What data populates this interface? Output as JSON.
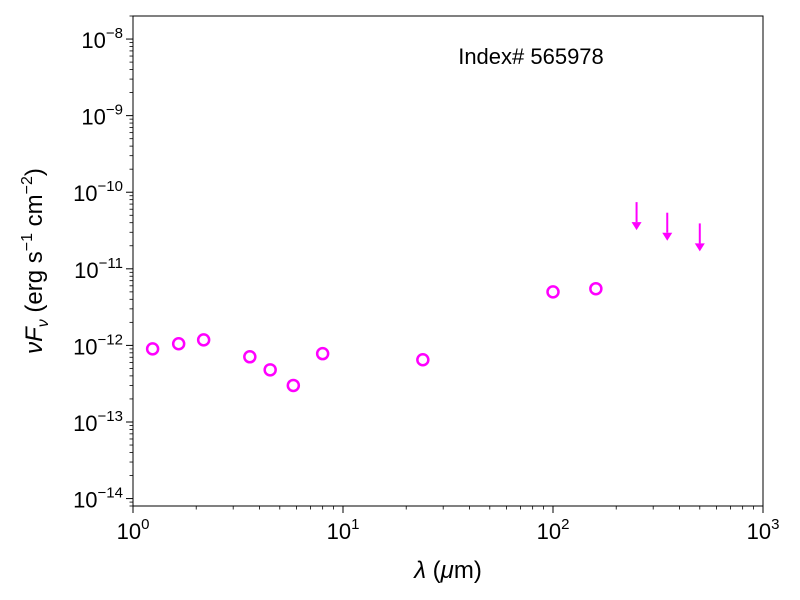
{
  "chart_data": {
    "type": "scatter",
    "annotation": "Index# 565978",
    "xlabel": "λ (μm)",
    "ylabel": "νFν (erg s⁻¹ cm⁻²)",
    "xscale": "log",
    "yscale": "log",
    "xlim": [
      1,
      1000
    ],
    "ylim": [
      8e-15,
      2e-08
    ],
    "grid": false,
    "x_ticks": [
      {
        "value": 1,
        "base": "10",
        "exp": "0"
      },
      {
        "value": 10,
        "base": "10",
        "exp": "1"
      },
      {
        "value": 100,
        "base": "10",
        "exp": "2"
      },
      {
        "value": 1000,
        "base": "10",
        "exp": "3"
      }
    ],
    "y_ticks": [
      {
        "value": 1e-14,
        "base": "10",
        "exp": "−14"
      },
      {
        "value": 1e-13,
        "base": "10",
        "exp": "−13"
      },
      {
        "value": 1e-12,
        "base": "10",
        "exp": "−12"
      },
      {
        "value": 1e-11,
        "base": "10",
        "exp": "−11"
      },
      {
        "value": 1e-10,
        "base": "10",
        "exp": "−10"
      },
      {
        "value": 1e-09,
        "base": "10",
        "exp": "−9"
      },
      {
        "value": 1e-08,
        "base": "10",
        "exp": "−8"
      }
    ],
    "series": [
      {
        "marker": "open-circle",
        "color": "#ff00ff",
        "points": [
          {
            "x": 1.24,
            "y": 9e-13
          },
          {
            "x": 1.65,
            "y": 1.05e-12
          },
          {
            "x": 2.17,
            "y": 1.18e-12
          },
          {
            "x": 3.6,
            "y": 7.1e-13
          },
          {
            "x": 4.5,
            "y": 4.8e-13
          },
          {
            "x": 5.8,
            "y": 3e-13
          },
          {
            "x": 8.0,
            "y": 7.8e-13
          },
          {
            "x": 24,
            "y": 6.5e-13
          },
          {
            "x": 100,
            "y": 5e-12
          },
          {
            "x": 160,
            "y": 5.5e-12
          }
        ]
      },
      {
        "marker": "upper-limit-arrow",
        "color": "#ff00ff",
        "points": [
          {
            "x": 250,
            "y": 5.5e-11
          },
          {
            "x": 350,
            "y": 4e-11
          },
          {
            "x": 500,
            "y": 2.9e-11
          }
        ]
      }
    ]
  }
}
